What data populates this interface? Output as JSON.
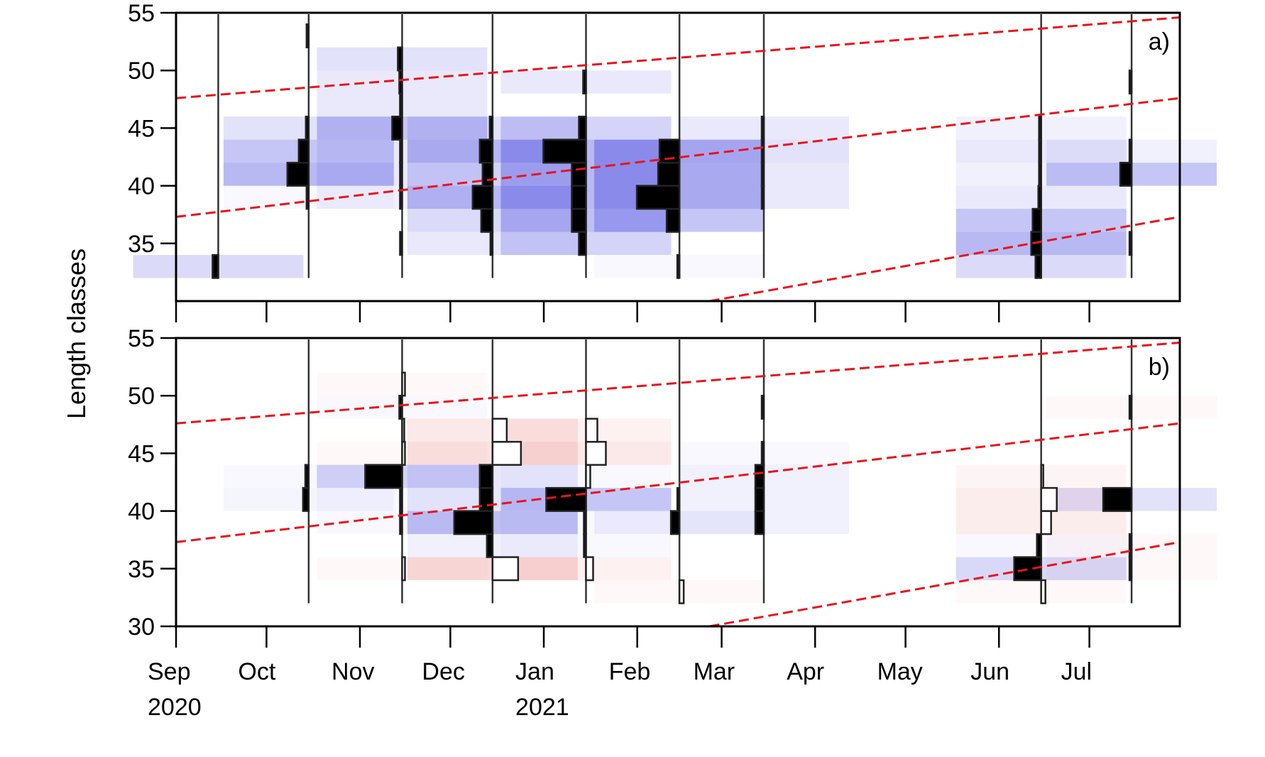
{
  "figure": {
    "ylabel": "Length classes"
  },
  "chart_data": [
    {
      "type": "heatmap",
      "panel_label": "a)",
      "ylim": [
        30,
        55
      ],
      "yticks": [
        35,
        40,
        45,
        50,
        55
      ],
      "xlim": [
        "2020-09-01",
        "2021-07-31"
      ],
      "xticks": [
        {
          "date": "2020-09-01",
          "label": "Sep",
          "sublabel": "2020"
        },
        {
          "date": "2020-10-01",
          "label": "Oct"
        },
        {
          "date": "2020-11-01",
          "label": "Nov"
        },
        {
          "date": "2020-12-01",
          "label": "Dec"
        },
        {
          "date": "2021-01-01",
          "label": "Jan",
          "sublabel": "2021"
        },
        {
          "date": "2021-02-01",
          "label": "Feb"
        },
        {
          "date": "2021-03-01",
          "label": "Mar"
        },
        {
          "date": "2021-04-01",
          "label": "Apr"
        },
        {
          "date": "2021-05-01",
          "label": "May"
        },
        {
          "date": "2021-06-01",
          "label": "Jun"
        },
        {
          "date": "2021-07-01",
          "label": "Jul"
        }
      ],
      "grid": false,
      "colors": {
        "positive": "#3333dd",
        "negative": "#dd3333",
        "bar_fill": "#000000",
        "curve": "#e8141c"
      },
      "samples": [
        {
          "date": "2020-09-15",
          "bins": [
            [
              32,
              2,
              0.5
            ]
          ]
        },
        {
          "date": "2020-10-15",
          "bins": [
            [
              38,
              0.3,
              0.1
            ],
            [
              40,
              7.5,
              1
            ],
            [
              42,
              3.5,
              0.8
            ],
            [
              44,
              1,
              0.4
            ],
            [
              52,
              0.3,
              0
            ]
          ]
        },
        {
          "date": "2020-11-15",
          "bins": [
            [
              38,
              0.3,
              0.2
            ],
            [
              40,
              0.3,
              0.3
            ],
            [
              42,
              0.5,
              0.3
            ],
            [
              44,
              3.5,
              0.8
            ],
            [
              46,
              0.3,
              0.3
            ],
            [
              48,
              1,
              0.3
            ],
            [
              50,
              1.5,
              0.4
            ],
            [
              34,
              0.3,
              0
            ]
          ]
        },
        {
          "date": "2020-12-15",
          "bins": [
            [
              34,
              0.3,
              0.3
            ],
            [
              36,
              4,
              0.5
            ],
            [
              38,
              7,
              1.2
            ],
            [
              40,
              3.5,
              0.6
            ],
            [
              42,
              4.5,
              1.2
            ],
            [
              44,
              1,
              0.4
            ]
          ]
        },
        {
          "date": "2021-01-15",
          "bins": [
            [
              34,
              2.5,
              0.6
            ],
            [
              36,
              5,
              0.9
            ],
            [
              38,
              5,
              1
            ],
            [
              40,
              5,
              1.8
            ],
            [
              42,
              15,
              1.1
            ],
            [
              44,
              2.5,
              0.6
            ],
            [
              48,
              1,
              0.3
            ]
          ]
        },
        {
          "date": "2021-02-15",
          "bins": [
            [
              32,
              0.3,
              0.1
            ],
            [
              36,
              4.5,
              0.8
            ],
            [
              38,
              15,
              2.2
            ],
            [
              40,
              7.5,
              1.6
            ],
            [
              42,
              7,
              1.2
            ]
          ]
        },
        {
          "date": "2021-03-15",
          "bins": [
            [
              38,
              0.3,
              0.3
            ],
            [
              40,
              0.3,
              0.3
            ],
            [
              42,
              0.5,
              0.4
            ],
            [
              44,
              0.5,
              0.3
            ]
          ]
        },
        {
          "date": "2021-06-15",
          "bins": [
            [
              32,
              2,
              0.5
            ],
            [
              34,
              3.5,
              1.7
            ],
            [
              36,
              3,
              0.8
            ],
            [
              38,
              1,
              0.3
            ],
            [
              40,
              0.5,
              0.2
            ],
            [
              42,
              0.3,
              0.3
            ],
            [
              44,
              0.5,
              0.2
            ]
          ]
        },
        {
          "date": "2021-07-15",
          "bins": [
            [
              40,
              4,
              0.8
            ],
            [
              42,
              0.3,
              0.2
            ],
            [
              48,
              0.3,
              0
            ],
            [
              34,
              0.3,
              0
            ]
          ]
        }
      ],
      "growth_curves": [
        {
          "points": [
            [
              "2020-09-01",
              47.6
            ],
            [
              "2021-07-31",
              54.6
            ]
          ]
        },
        {
          "points": [
            [
              "2020-09-01",
              37.3
            ],
            [
              "2021-07-31",
              47.6
            ]
          ]
        },
        {
          "points": [
            [
              "2021-02-25",
              30
            ],
            [
              "2021-07-31",
              37.3
            ]
          ]
        }
      ]
    },
    {
      "type": "heatmap",
      "panel_label": "b)",
      "ylim": [
        30,
        55
      ],
      "yticks": [
        30,
        35,
        40,
        45,
        50,
        55
      ],
      "xlim": [
        "2020-09-01",
        "2021-07-31"
      ],
      "xticks": [
        {
          "date": "2020-09-01",
          "label": "Sep",
          "sublabel": "2020"
        },
        {
          "date": "2020-10-01",
          "label": "Oct"
        },
        {
          "date": "2020-11-01",
          "label": "Nov"
        },
        {
          "date": "2020-12-01",
          "label": "Dec"
        },
        {
          "date": "2021-01-01",
          "label": "Jan",
          "sublabel": "2021"
        },
        {
          "date": "2021-02-01",
          "label": "Feb"
        },
        {
          "date": "2021-03-01",
          "label": "Mar"
        },
        {
          "date": "2021-04-01",
          "label": "Apr"
        },
        {
          "date": "2021-05-01",
          "label": "May"
        },
        {
          "date": "2021-06-01",
          "label": "Jun"
        },
        {
          "date": "2021-07-01",
          "label": "Jul"
        }
      ],
      "grid": false,
      "colors": {
        "positive": "#3333dd",
        "negative": "#dd3333",
        "bar_fill": "#000000",
        "curve": "#e8141c"
      },
      "samples": [
        {
          "date": "2020-10-15",
          "bins": [
            [
              40,
              2,
              0.15
            ],
            [
              42,
              1.2,
              0.1
            ]
          ]
        },
        {
          "date": "2020-11-15",
          "bins": [
            [
              34,
              -1,
              -0.1
            ],
            [
              40,
              0.4,
              0.1
            ],
            [
              42,
              13,
              0.6
            ],
            [
              44,
              -1,
              -0.1
            ],
            [
              46,
              -0.3,
              0
            ],
            [
              48,
              1,
              0.1
            ],
            [
              50,
              -1,
              -0.1
            ],
            [
              38,
              0.3,
              0.1
            ]
          ]
        },
        {
          "date": "2020-12-15",
          "bins": [
            [
              34,
              -9,
              -0.5
            ],
            [
              36,
              2,
              0.2
            ],
            [
              38,
              13.5,
              0.9
            ],
            [
              40,
              4.5,
              0.3
            ],
            [
              42,
              4.5,
              0.3
            ],
            [
              44,
              -10,
              -0.4
            ],
            [
              46,
              -5,
              -0.3
            ]
          ]
        },
        {
          "date": "2021-01-15",
          "bins": [
            [
              34,
              -2.5,
              -0.2
            ],
            [
              36,
              0.5,
              0.1
            ],
            [
              40,
              14,
              0.8
            ],
            [
              42,
              -1.5,
              0.1
            ],
            [
              44,
              -7,
              -0.3
            ],
            [
              46,
              -4,
              -0.2
            ],
            [
              38,
              0.3,
              0.1
            ]
          ]
        },
        {
          "date": "2021-02-15",
          "bins": [
            [
              32,
              -1.5,
              -0.1
            ],
            [
              38,
              3,
              0.2
            ],
            [
              40,
              0.3,
              0
            ]
          ]
        },
        {
          "date": "2021-03-15",
          "bins": [
            [
              38,
              3,
              0.2
            ],
            [
              40,
              3,
              0.2
            ],
            [
              42,
              3,
              0.2
            ],
            [
              44,
              0.3,
              0.1
            ],
            [
              48,
              0.3,
              0
            ]
          ]
        },
        {
          "date": "2021-06-15",
          "bins": [
            [
              32,
              -1.5,
              -0.1
            ],
            [
              34,
              9.5,
              0.55
            ],
            [
              36,
              1.5,
              0.1
            ],
            [
              38,
              -3.5,
              -0.25
            ],
            [
              40,
              -5.5,
              -0.25
            ],
            [
              42,
              -0.5,
              -0.15
            ]
          ]
        },
        {
          "date": "2021-07-15",
          "bins": [
            [
              34,
              0.3,
              -0.1
            ],
            [
              36,
              0.3,
              -0.1
            ],
            [
              40,
              10,
              0.4
            ],
            [
              48,
              0.5,
              -0.1
            ]
          ]
        }
      ],
      "growth_curves": [
        {
          "points": [
            [
              "2020-09-01",
              47.6
            ],
            [
              "2021-07-31",
              54.6
            ]
          ]
        },
        {
          "points": [
            [
              "2020-09-01",
              37.3
            ],
            [
              "2021-07-31",
              47.6
            ]
          ]
        },
        {
          "points": [
            [
              "2021-02-25",
              30
            ],
            [
              "2021-07-31",
              37.3
            ]
          ]
        }
      ]
    }
  ]
}
